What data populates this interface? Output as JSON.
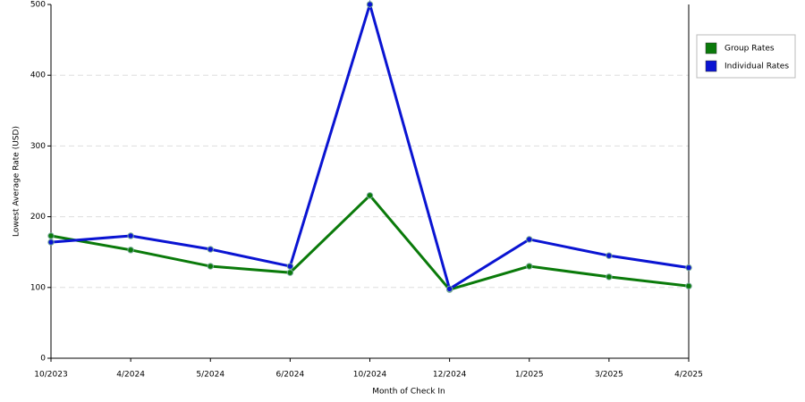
{
  "chart_data": {
    "type": "line",
    "x_label": "Month of Check In",
    "y_label": "Lowest Average Rate (USD)",
    "categories": [
      "10/2023",
      "4/2024",
      "5/2024",
      "6/2024",
      "10/2024",
      "12/2024",
      "1/2025",
      "3/2025",
      "4/2025"
    ],
    "series": [
      {
        "name": "Group Rates",
        "color": "#0a7a0a",
        "values": [
          173,
          153,
          130,
          121,
          230,
          97,
          130,
          115,
          102
        ]
      },
      {
        "name": "Individual Rates",
        "color": "#0a14d2",
        "values": [
          164,
          173,
          154,
          130,
          500,
          98,
          168,
          145,
          128
        ]
      }
    ],
    "ylim": [
      0,
      500
    ],
    "yticks": [
      0,
      100,
      200,
      300,
      400,
      500
    ],
    "grid": true,
    "legend": "top-right"
  }
}
